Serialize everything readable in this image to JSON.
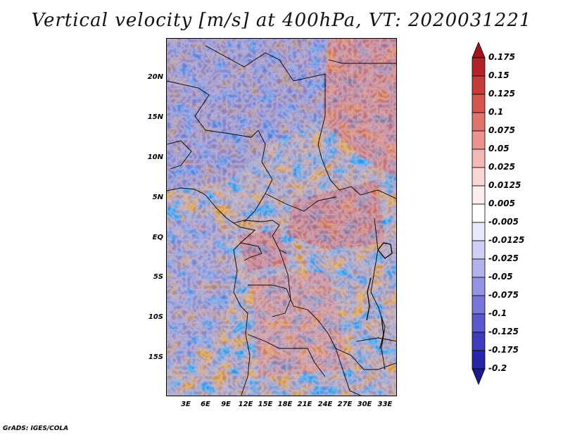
{
  "title": "Vertical velocity [m/s] at 400hPa, VT: 2020031221",
  "credit": "GrADS: IGES/COLA",
  "map": {
    "lat_labels": [
      "20N",
      "15N",
      "10N",
      "5N",
      "EQ",
      "5S",
      "10S",
      "15S"
    ],
    "lon_labels": [
      "3E",
      "6E",
      "9E",
      "12E",
      "15E",
      "18E",
      "21E",
      "24E",
      "27E",
      "30E",
      "33E"
    ],
    "lat_range": [
      -20,
      25
    ],
    "lon_range": [
      0,
      35
    ]
  },
  "colorbar": {
    "labels": [
      "0.175",
      "0.15",
      "0.125",
      "0.1",
      "0.075",
      "0.05",
      "0.025",
      "0.0125",
      "0.005",
      "-0.005",
      "-0.0125",
      "-0.025",
      "-0.05",
      "-0.075",
      "-0.1",
      "-0.125",
      "-0.175",
      "-0.2"
    ],
    "colors": [
      "#a0141e",
      "#b4232a",
      "#c83a3a",
      "#d85552",
      "#e2726c",
      "#ec9590",
      "#f4b8b4",
      "#fad6d4",
      "#fdeeee",
      "#ffffff",
      "#e8e8fb",
      "#cfcff5",
      "#b2b2ee",
      "#9494e4",
      "#7777da",
      "#5a5ace",
      "#3d3dbe",
      "#2626a8",
      "#1a1a8c"
    ]
  }
}
